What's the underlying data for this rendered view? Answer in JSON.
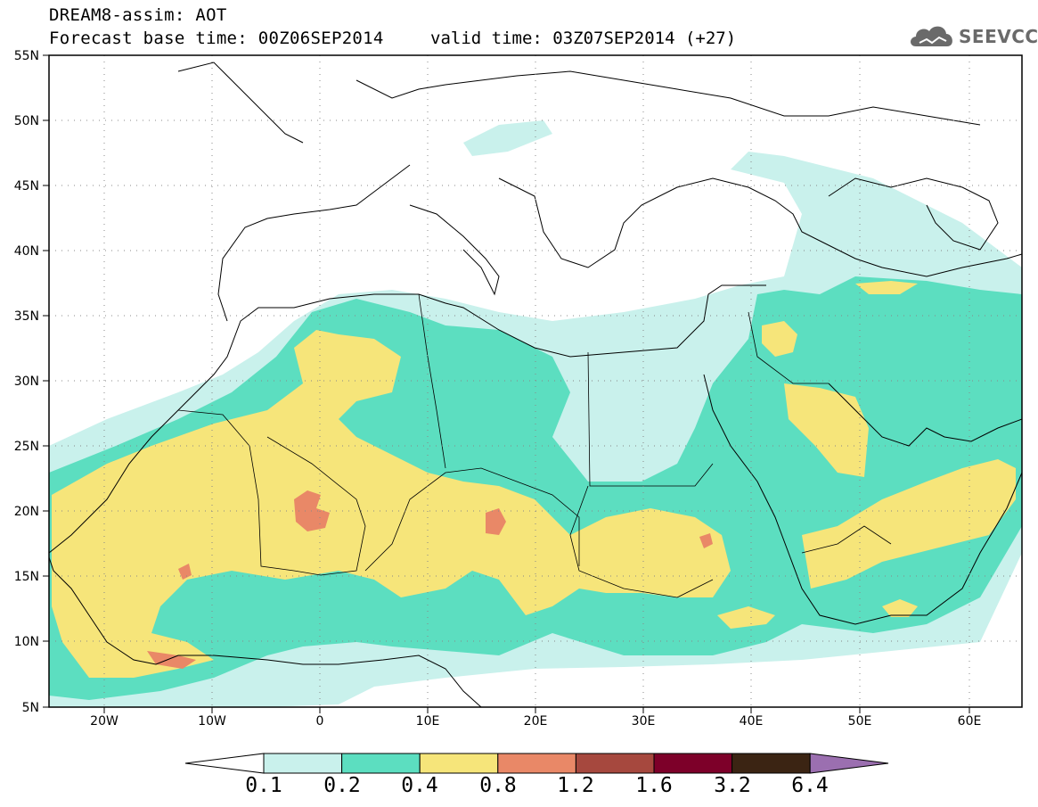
{
  "header": {
    "title_line1": "DREAM8-assim: AOT",
    "title_line2": "Forecast base time: 00Z06SEP2014",
    "valid_time": "valid time: 03Z07SEP2014 (+27)",
    "logo_text": "SEEVCCC",
    "logo_icon": "cloud-icon"
  },
  "map": {
    "lon_range": [
      -25,
      65
    ],
    "lat_range": [
      5,
      55
    ],
    "lat_labels": [
      "55N",
      "50N",
      "45N",
      "40N",
      "35N",
      "30N",
      "25N",
      "20N",
      "15N",
      "10N",
      "5N"
    ],
    "lon_labels": [
      "20W",
      "10W",
      "0",
      "10E",
      "20E",
      "30E",
      "40E",
      "50E",
      "60E"
    ],
    "grid": "dotted"
  },
  "legend": {
    "labels": [
      "0.1",
      "0.2",
      "0.4",
      "0.8",
      "1.2",
      "1.6",
      "3.2",
      "6.4"
    ],
    "colors": [
      "#ffffff",
      "#c9f1ec",
      "#5cdec0",
      "#f6e57a",
      "#e98867",
      "#a6483e",
      "#7d0029",
      "#3b2413",
      "#9b6fb0"
    ]
  }
}
